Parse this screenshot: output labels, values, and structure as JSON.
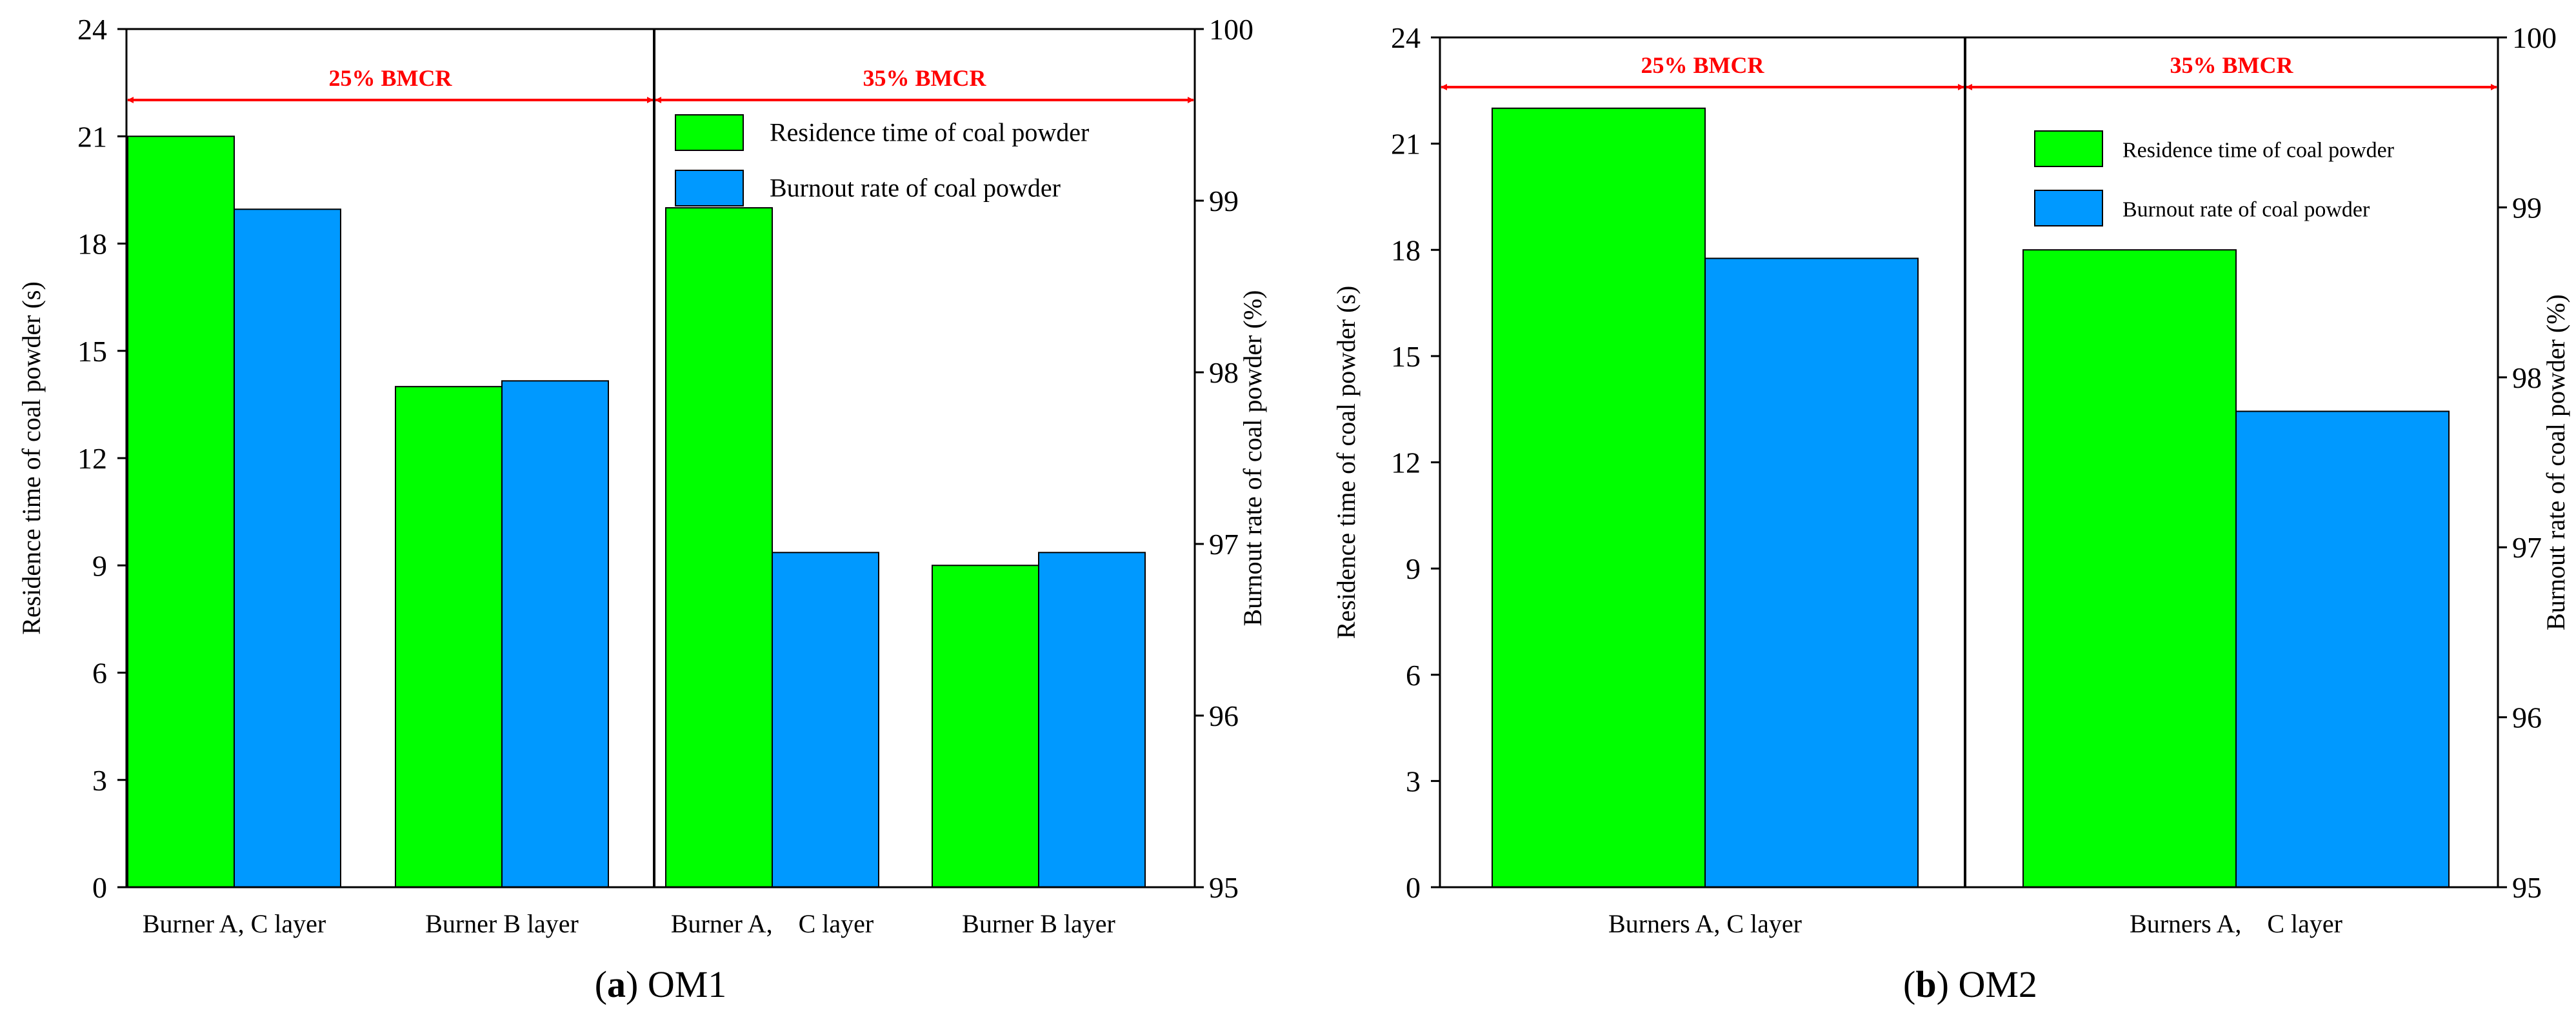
{
  "chart_data": [
    {
      "type": "bar",
      "panel_id": "a",
      "caption_letter": "a",
      "caption_name": "OM1",
      "categories": [
        "Burner A, C layer",
        "Burner B layer",
        "Burner A,　C layer",
        "Burner B layer"
      ],
      "regions": [
        {
          "label": "25% BMCR",
          "categories": [
            0,
            1
          ]
        },
        {
          "label": "35% BMCR",
          "categories": [
            2,
            3
          ]
        }
      ],
      "series": [
        {
          "name": "Residence time of coal powder",
          "axis": "left",
          "color": "#00ff00",
          "values": [
            21,
            14,
            19,
            9
          ]
        },
        {
          "name": "Burnout rate of coal powder",
          "axis": "right",
          "color": "#0099ff",
          "values": [
            98.95,
            97.95,
            96.95,
            96.95
          ]
        }
      ],
      "ylabel_left": "Residence time of coal powder (s)",
      "ylim_left": [
        0,
        24
      ],
      "yticks_left": [
        0,
        3,
        6,
        9,
        12,
        15,
        18,
        21,
        24
      ],
      "ylabel_right": "Burnout rate of coal powder (%)",
      "ylim_right": [
        95,
        100
      ],
      "yticks_right": [
        95,
        96,
        97,
        98,
        99,
        100
      ],
      "legend_position": "top-right"
    },
    {
      "type": "bar",
      "panel_id": "b",
      "caption_letter": "b",
      "caption_name": "OM2",
      "categories": [
        "Burners A, C layer",
        "Burners A,　C layer"
      ],
      "regions": [
        {
          "label": "25% BMCR",
          "categories": [
            0
          ]
        },
        {
          "label": "35% BMCR",
          "categories": [
            1
          ]
        }
      ],
      "series": [
        {
          "name": "Residence time of coal powder",
          "axis": "left",
          "color": "#00ff00",
          "values": [
            22,
            18
          ]
        },
        {
          "name": "Burnout rate of coal powder",
          "axis": "right",
          "color": "#0099ff",
          "values": [
            98.7,
            97.8
          ]
        }
      ],
      "ylabel_left": "Residence time of coal powder (s)",
      "ylim_left": [
        0,
        24
      ],
      "yticks_left": [
        0,
        3,
        6,
        9,
        12,
        15,
        18,
        21,
        24
      ],
      "ylabel_right": "Burnout rate of coal powder (%)",
      "ylim_right": [
        95,
        100
      ],
      "yticks_right": [
        95,
        96,
        97,
        98,
        99,
        100
      ],
      "legend_position": "top-right"
    }
  ]
}
